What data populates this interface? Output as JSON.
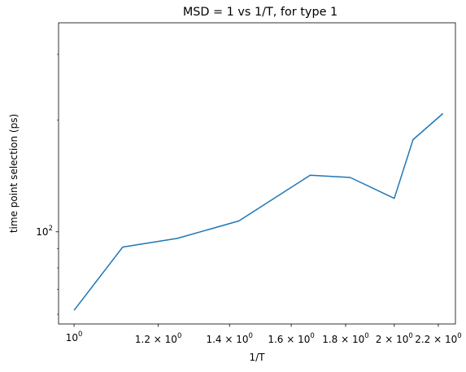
{
  "chart_data": {
    "type": "line",
    "title": "MSD = 1 vs 1/T, for type 1",
    "xlabel": "1/T",
    "ylabel": "time point selection (ps)",
    "xscale": "log",
    "yscale": "log",
    "xlim": [
      0.967,
      2.283
    ],
    "ylim": [
      56.5,
      365
    ],
    "grid": false,
    "series": [
      {
        "color": "#1f77b4",
        "x": [
          1.0,
          1.111,
          1.25,
          1.429,
          1.667,
          1.818,
          2.0,
          2.083,
          2.222
        ],
        "y": [
          61.5,
          91,
          96,
          107,
          142,
          140,
          123,
          177,
          208
        ]
      }
    ],
    "x_ticks": [
      {
        "base": "10",
        "exp": "0",
        "prefix": "",
        "value": 1.0,
        "text": "10^0"
      },
      {
        "base": "10",
        "exp": "0",
        "prefix": "1.2 × ",
        "value": 1.2,
        "text": "1.2 × 10^0"
      },
      {
        "base": "10",
        "exp": "0",
        "prefix": "1.4 × ",
        "value": 1.4,
        "text": "1.4 × 10^0"
      },
      {
        "base": "10",
        "exp": "0",
        "prefix": "1.6 × ",
        "value": 1.6,
        "text": "1.6 × 10^0"
      },
      {
        "base": "10",
        "exp": "0",
        "prefix": "1.8 × ",
        "value": 1.8,
        "text": "1.8 × 10^0"
      },
      {
        "base": "10",
        "exp": "0",
        "prefix": "2 × ",
        "value": 2.0,
        "text": "2 × 10^0"
      },
      {
        "base": "10",
        "exp": "0",
        "prefix": "2.2 × ",
        "value": 2.2,
        "text": "2.2 × 10^0"
      }
    ],
    "y_ticks": [
      {
        "base": "10",
        "exp": "2",
        "value": 100,
        "text": "10^2"
      }
    ],
    "y_minor_ticks": [
      60,
      70,
      80,
      90,
      200,
      300
    ]
  }
}
